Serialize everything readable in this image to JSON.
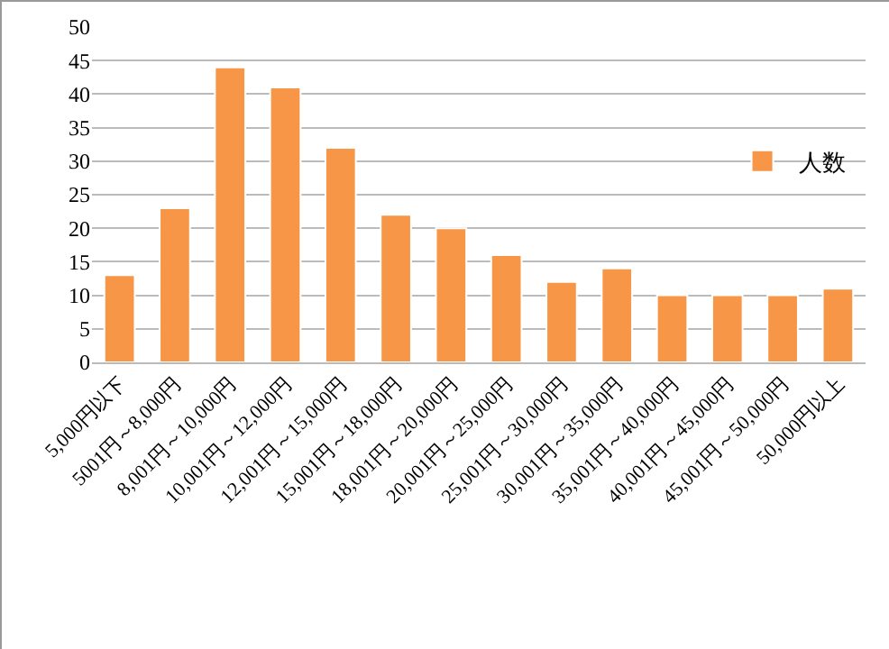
{
  "chart_data": {
    "type": "bar",
    "categories": [
      "5,000円以下",
      "5001円～8,000円",
      "8,001円～10,000円",
      "10,001円～12,000円",
      "12,001円～15,000円",
      "15,001円～18,000円",
      "18,001円～20,000円",
      "20,001円～25,000円",
      "25,001円～30,000円",
      "30,001円～35,000円",
      "35,001円～40,000円",
      "40,001円～45,000円",
      "45,001円～50,000円",
      "50,000円以上"
    ],
    "series": [
      {
        "name": "人数",
        "color": "#f79646",
        "values": [
          13,
          23,
          44,
          41,
          32,
          22,
          20,
          16,
          12,
          14,
          10,
          10,
          10,
          11
        ]
      }
    ],
    "ylim": [
      0,
      50
    ],
    "yticks": [
      0,
      5,
      10,
      15,
      20,
      25,
      30,
      35,
      40,
      45,
      50
    ],
    "grid": "y",
    "legend": "right"
  }
}
